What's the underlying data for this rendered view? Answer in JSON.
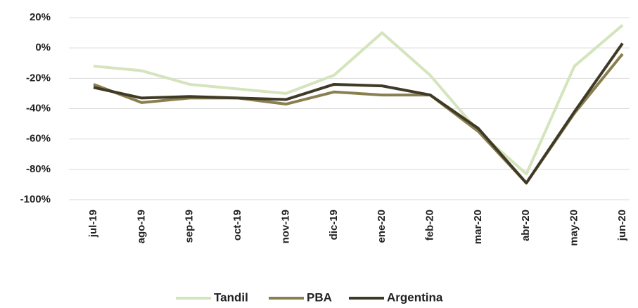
{
  "chart_data": {
    "type": "line",
    "categories": [
      "jul-19",
      "ago-19",
      "sep-19",
      "oct-19",
      "nov-19",
      "dic-19",
      "ene-20",
      "feb-20",
      "mar-20",
      "abr-20",
      "may-20",
      "jun-20"
    ],
    "series": [
      {
        "name": "Tandil",
        "color": "#d4e4bc",
        "values": [
          -12,
          -15,
          -24,
          -27,
          -30,
          -18,
          10,
          -18,
          -55,
          -83,
          -12,
          15
        ]
      },
      {
        "name": "PBA",
        "color": "#8b7f4f",
        "values": [
          -24,
          -36,
          -33,
          -33,
          -37,
          -29,
          -31,
          -31,
          -55,
          -89,
          -43,
          -4
        ]
      },
      {
        "name": "Argentina",
        "color": "#3f3a26",
        "values": [
          -26,
          -33,
          -32,
          -33,
          -34,
          -24,
          -25,
          -31,
          -53,
          -89,
          -42,
          3
        ]
      }
    ],
    "ylim": [
      -100,
      20
    ],
    "yticks": [
      {
        "value": -100,
        "label": "-100%"
      },
      {
        "value": -80,
        "label": "-80%"
      },
      {
        "value": -60,
        "label": "-60%"
      },
      {
        "value": -40,
        "label": "-40%"
      },
      {
        "value": -20,
        "label": "-20%"
      },
      {
        "value": 0,
        "label": "0%"
      },
      {
        "value": 20,
        "label": "20%"
      }
    ],
    "grid": true,
    "legend": "bottom"
  }
}
